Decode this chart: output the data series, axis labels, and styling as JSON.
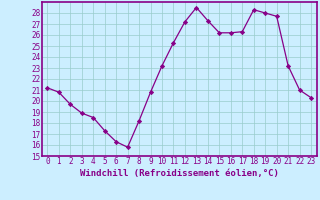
{
  "x": [
    0,
    1,
    2,
    3,
    4,
    5,
    6,
    7,
    8,
    9,
    10,
    11,
    12,
    13,
    14,
    15,
    16,
    17,
    18,
    19,
    20,
    21,
    22,
    23
  ],
  "y": [
    21.2,
    20.8,
    19.7,
    18.9,
    18.5,
    17.3,
    16.3,
    15.8,
    18.2,
    20.8,
    23.2,
    25.3,
    27.2,
    28.5,
    27.3,
    26.2,
    26.2,
    26.3,
    28.3,
    28.0,
    27.7,
    23.2,
    21.0,
    20.3
  ],
  "line_color": "#880088",
  "marker_color": "#880088",
  "bg_color": "#cceeff",
  "grid_color": "#99cccc",
  "axis_line_color": "#880088",
  "xlabel": "Windchill (Refroidissement éolien,°C)",
  "ylim_min": 15,
  "ylim_max": 29,
  "xlim_min": -0.5,
  "xlim_max": 23.5,
  "yticks": [
    15,
    16,
    17,
    18,
    19,
    20,
    21,
    22,
    23,
    24,
    25,
    26,
    27,
    28
  ],
  "xticks": [
    0,
    1,
    2,
    3,
    4,
    5,
    6,
    7,
    8,
    9,
    10,
    11,
    12,
    13,
    14,
    15,
    16,
    17,
    18,
    19,
    20,
    21,
    22,
    23
  ],
  "font_color": "#880088",
  "xlabel_fontsize": 6.5,
  "tick_fontsize": 5.5,
  "linewidth": 0.9,
  "markersize": 2.2
}
